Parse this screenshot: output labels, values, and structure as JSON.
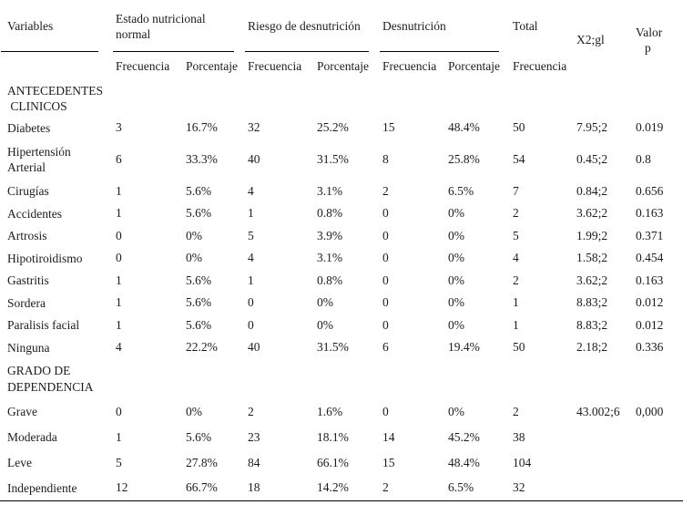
{
  "colors": {
    "text": "#1c1c1c",
    "rule": "#000000",
    "background": "#ffffff"
  },
  "table": {
    "header": {
      "variables": "Variables",
      "groups": [
        {
          "label": "Estado nutricional normal",
          "freq": "Frecuencia",
          "pct": "Porcentaje"
        },
        {
          "label": "Riesgo de desnutrición",
          "freq": "Frecuencia",
          "pct": "Porcentaje"
        },
        {
          "label": "Desnutrición",
          "freq": "Frecuencia",
          "pct": "Porcentaje"
        }
      ],
      "total_label": "Total",
      "total_sub": "Frecuencia",
      "chi_label": "X2;gl",
      "p_line1": "Valor",
      "p_line2": "p"
    },
    "sections": [
      {
        "title_lines": [
          "ANTECEDENTES",
          " CLINICOS"
        ],
        "rows": [
          {
            "label": "Diabetes",
            "values": [
              "3",
              "16.7%",
              "32",
              "25.2%",
              "15",
              "48.4%",
              "50",
              "7.95;2",
              "0.019"
            ]
          },
          {
            "label": "Hipertensión Arterial",
            "values": [
              "6",
              "33.3%",
              "40",
              "31.5%",
              "8",
              "25.8%",
              "54",
              "0.45;2",
              "0.8"
            ]
          },
          {
            "label": "Cirugías",
            "values": [
              "1",
              "5.6%",
              "4",
              "3.1%",
              "2",
              "6.5%",
              "7",
              "0.84;2",
              "0.656"
            ]
          },
          {
            "label": "Accidentes",
            "values": [
              "1",
              "5.6%",
              "1",
              "0.8%",
              "0",
              "0%",
              "2",
              "3.62;2",
              "0.163"
            ]
          },
          {
            "label": "Artrosis",
            "values": [
              "0",
              "0%",
              "5",
              "3.9%",
              "0",
              "0%",
              "5",
              "1.99;2",
              "0.371"
            ]
          },
          {
            "label": "Hipotiroidismo",
            "values": [
              "0",
              "0%",
              "4",
              "3.1%",
              "0",
              "0%",
              "4",
              "1.58;2",
              "0.454"
            ]
          },
          {
            "label": "Gastritis",
            "values": [
              "1",
              "5.6%",
              "1",
              "0.8%",
              "0",
              "0%",
              "2",
              "3.62;2",
              "0.163"
            ]
          },
          {
            "label": "Sordera",
            "values": [
              "1",
              "5.6%",
              "0",
              "0%",
              "0",
              "0%",
              "1",
              "8.83;2",
              "0.012"
            ]
          },
          {
            "label": "Paralisis facial",
            "values": [
              "1",
              "5.6%",
              "0",
              "0%",
              "0",
              "0%",
              "1",
              "8.83;2",
              "0.012"
            ]
          },
          {
            "label": "Ninguna",
            "values": [
              "4",
              "22.2%",
              "40",
              "31.5%",
              "6",
              "19.4%",
              "50",
              "2.18;2",
              "0.336"
            ]
          }
        ]
      },
      {
        "title_lines": [
          "GRADO DE",
          "DEPENDENCIA"
        ],
        "rows": [
          {
            "label": "Grave",
            "values": [
              "0",
              "0%",
              "2",
              "1.6%",
              "0",
              "0%",
              "2",
              "43.002;6",
              "0,000"
            ]
          },
          {
            "label": "Moderada",
            "values": [
              "1",
              "5.6%",
              "23",
              "18.1%",
              "14",
              "45.2%",
              "38",
              "",
              ""
            ]
          },
          {
            "label": "Leve",
            "values": [
              "5",
              "27.8%",
              "84",
              "66.1%",
              "15",
              "48.4%",
              "104",
              "",
              ""
            ]
          },
          {
            "label": "Independiente",
            "values": [
              "12",
              "66.7%",
              "18",
              "14.2%",
              "2",
              "6.5%",
              "32",
              "",
              ""
            ]
          }
        ]
      }
    ]
  }
}
